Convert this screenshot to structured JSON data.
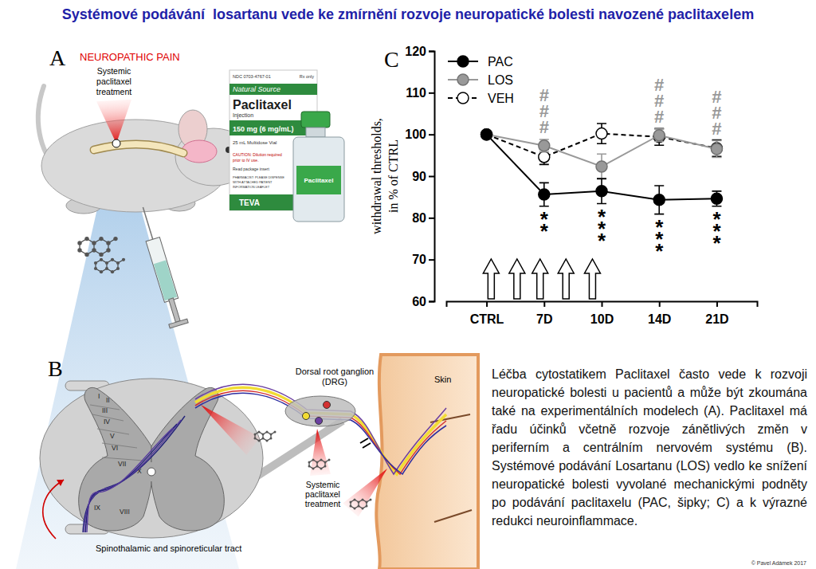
{
  "title": "Systémové podávání  losartanu vede ke zmírnění rozvoje neuropatické bolesti navozené paclitaxelem",
  "panel_a": {
    "label": "A",
    "heading": "NEUROPATHIC PAIN",
    "treatment": [
      "Systemic",
      "paclitaxel",
      "treatment"
    ],
    "box_text": [
      "NDC 0703-4767-01",
      "Rx only",
      "Natural Source",
      "Paclitaxel",
      "Injection",
      "150 mg (6 mg/mL)",
      "25 mL Multidose Vial",
      "CAUTION: Dilution required",
      "prior to IV use.",
      "Read package insert",
      "PHARMACIST: PLEASE DISPENSE",
      "WITH ATTACHED PATIENT",
      "INFORMATION LEAFLET",
      "TEVA"
    ],
    "vial_label": "Paclitaxel"
  },
  "panel_b": {
    "label": "B",
    "drg": [
      "Dorsal root ganglion",
      "(DRG)"
    ],
    "skin": "Skin",
    "treatment": [
      "Systemic",
      "paclitaxel",
      "treatment"
    ],
    "tract": "Spinothalamic and spinoreticular tract",
    "laminae": [
      "I",
      "II",
      "III",
      "IV",
      "V",
      "VI",
      "VII",
      "IX",
      "VIII",
      "X"
    ]
  },
  "chart_data": {
    "type": "line",
    "panel_label": "C",
    "y_label": [
      "withdrawal thresholds,",
      "in % of CTRL"
    ],
    "categories": [
      "CTRL",
      "7D",
      "10D",
      "14D",
      "21D"
    ],
    "series": [
      {
        "name": "PAC",
        "color": "#000000",
        "marker": "circle",
        "line_style": "solid",
        "values": [
          100,
          85.6,
          86.4,
          84.3,
          84.6
        ],
        "errors": [
          0,
          2.8,
          3.0,
          3.4,
          1.8
        ]
      },
      {
        "name": "LOS",
        "color": "#999999",
        "marker": "circle",
        "line_style": "solid",
        "values": [
          100,
          97.3,
          92.3,
          99.8,
          96.5
        ],
        "errors": [
          0,
          1.5,
          3.0,
          1.5,
          2.0
        ]
      },
      {
        "name": "VEH",
        "color": "#000000",
        "marker": "open_circle",
        "line_style": "dashed",
        "values": [
          100,
          94.6,
          100.2,
          99.4,
          96.7
        ],
        "errors": [
          0,
          1.8,
          2.4,
          2.0,
          2.0
        ]
      }
    ],
    "ylim": [
      60,
      120
    ],
    "yticks": [
      60,
      70,
      80,
      90,
      100,
      110,
      120
    ],
    "legend": "top-left",
    "annotations": [
      {
        "x": "7D",
        "series": "PAC",
        "text": "**",
        "position": "below"
      },
      {
        "x": "10D",
        "series": "PAC",
        "text": "***",
        "position": "below"
      },
      {
        "x": "14D",
        "series": "PAC",
        "text": "***",
        "position": "below"
      },
      {
        "x": "21D",
        "series": "PAC",
        "text": "***",
        "position": "below"
      },
      {
        "x": "7D",
        "series": "LOS",
        "text": "###",
        "position": "above"
      },
      {
        "x": "14D",
        "series": "LOS",
        "text": "###",
        "position": "above"
      },
      {
        "x": "21D",
        "series": "LOS",
        "text": "###",
        "position": "above"
      }
    ],
    "treatment_arrows": [
      0.08,
      0.53,
      0.93,
      1.38,
      1.84
    ]
  },
  "caption": "Léčba cytostatikem Paclitaxel často vede k rozvoji neuropatické bolesti u pacientů a může být zkoumána také na experimentálních modelech (A).  Paclitaxel má řadu účinků včetně rozvoje zánětlivých změn v periferním a centrálním nervovém systému (B). Systémové podávání Losartanu (LOS) vedlo ke snížení neuropatické bolesti vyvolané mechanickými podněty po podávání paclitaxelu (PAC, šipky; C) a k výrazné redukci neuroinflammace.",
  "copyright": "© Pavel Adámek 2017"
}
